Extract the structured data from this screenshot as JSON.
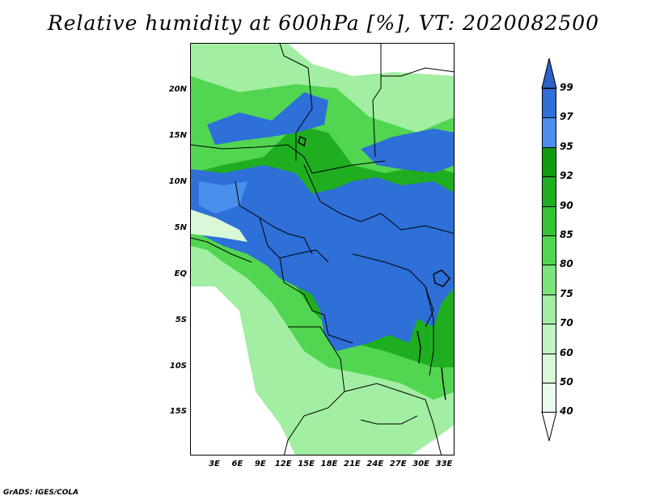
{
  "title": "Relative humidity at 600hPa [%], VT: 2020082500",
  "credit": "GrADS: IGES/COLA",
  "lat_labels": [
    "20N",
    "15N",
    "10N",
    "5N",
    "EQ",
    "5S",
    "10S",
    "15S"
  ],
  "lon_labels": [
    "3E",
    "6E",
    "9E",
    "12E",
    "15E",
    "18E",
    "21E",
    "24E",
    "27E",
    "30E",
    "33E"
  ],
  "colorbar": {
    "levels": [
      "99",
      "97",
      "95",
      "92",
      "90",
      "85",
      "80",
      "75",
      "70",
      "60",
      "50",
      "40"
    ],
    "colors": {
      "top": "#2a62c5",
      "b97_99": "#2e6fd8",
      "b95_97": "#4a8fec",
      "b92_95": "#109a10",
      "b90_92": "#1fae1f",
      "b85_90": "#34c334",
      "b80_85": "#52d652",
      "b75_80": "#7ce47c",
      "b70_75": "#a2eea2",
      "b60_70": "#c0f4c0",
      "b50_60": "#d8f8d8",
      "b40_50": "#ecfcec",
      "bottom": "#ffffff"
    }
  },
  "map_colors": {
    "wet": "#2e6fd8",
    "wet_light": "#4a8fec",
    "green_dark": "#1fae1f",
    "green_mid": "#52d652",
    "green_light": "#a2eea2",
    "green_pale": "#d8f8d8",
    "border": "#000000"
  }
}
